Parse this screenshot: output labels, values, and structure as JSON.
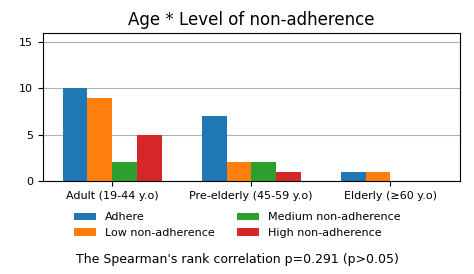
{
  "chart_data": {
    "type": "bar",
    "title": "Age * Level of non-adherence",
    "categories": [
      "Adult (19-44 y.o)",
      "Pre-elderly (45-59 y.o)",
      "Elderly (≥60 y.o)"
    ],
    "series": [
      {
        "name": "Adhere",
        "values": [
          10,
          7,
          1
        ]
      },
      {
        "name": "Low non-adherence",
        "values": [
          9,
          2,
          1
        ]
      },
      {
        "name": "Medium non-adherence",
        "values": [
          2,
          2,
          0
        ]
      },
      {
        "name": "High non-adherence",
        "values": [
          5,
          1,
          0
        ]
      }
    ],
    "ylim": [
      0,
      16
    ],
    "yticks": [
      0,
      5,
      10,
      15
    ],
    "grid": true,
    "legend": "bottom",
    "annotations": [
      "The Spearman's rank correlation p=0.291 (p>0.05)"
    ]
  }
}
